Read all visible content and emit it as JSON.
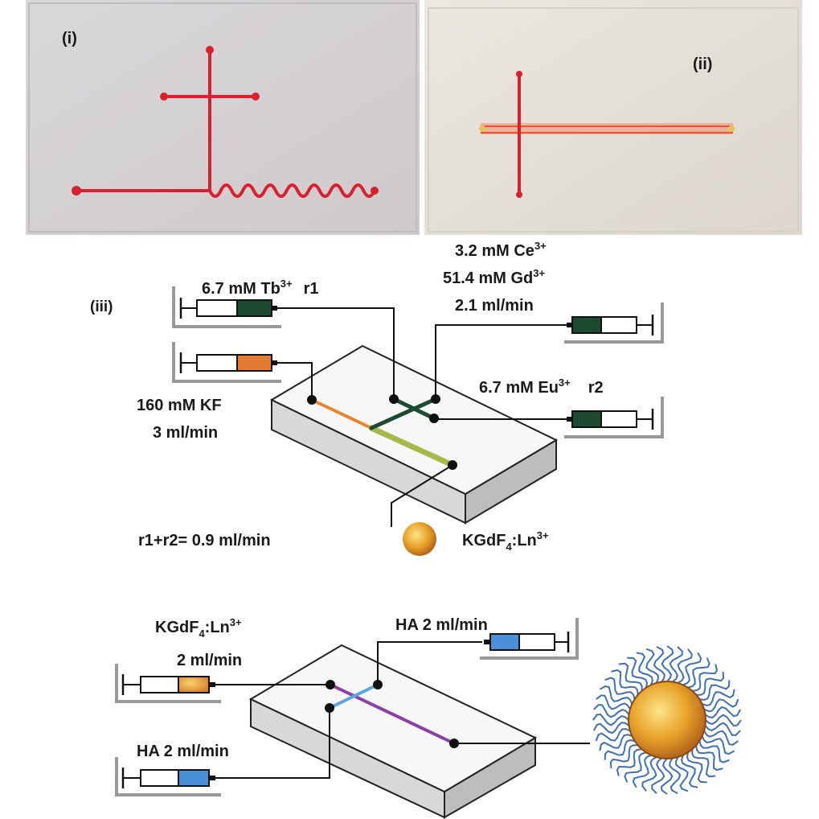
{
  "panels": {
    "i": "(i)",
    "ii": "(ii)",
    "iii": "(iii)"
  },
  "colors": {
    "channel_red": "#d8202f",
    "chip_top": "#f7f7f7",
    "chip_side": "#bdbdbd",
    "chip_front": "#d8d8d8",
    "syringe_dark_green": "#1f4a32",
    "syringe_orange": "#e07b31",
    "syringe_blue": "#4a90d9",
    "channel_orange": "#e8862e",
    "channel_green_dark": "#1f4a32",
    "channel_green_light": "#a7b94a",
    "channel_blue": "#5aa6e0",
    "channel_purple": "#8c3fa5",
    "particle_gold": "#e9a32a",
    "ligand_blue": "#3f6fb5",
    "base_gray": "#999999"
  },
  "labels": {
    "tb": {
      "main": "6.7 mM Tb",
      "sup": "3+",
      "tag": "r1"
    },
    "ce": {
      "main": "3.2 mM Ce",
      "sup": "3+"
    },
    "gd": {
      "main": "51.4 mM Gd",
      "sup": "3+"
    },
    "flow_ce_gd": "2.1 ml/min",
    "eu": {
      "main": "6.7 mM Eu",
      "sup": "3+",
      "tag": "r2"
    },
    "kf": "160 mM KF",
    "kf_flow": "3 ml/min",
    "r_sum": "r1+r2= 0.9 ml/min",
    "product": {
      "pre": "KGdF",
      "sub": "4",
      "mid": ":Ln",
      "sup": "3+"
    },
    "input2": {
      "pre": "KGdF",
      "sub": "4",
      "mid": ":Ln",
      "sup": "3+"
    },
    "input2_flow": "2 ml/min",
    "ha_top": "HA  2 ml/min",
    "ha_bottom": "HA 2 ml/min"
  }
}
